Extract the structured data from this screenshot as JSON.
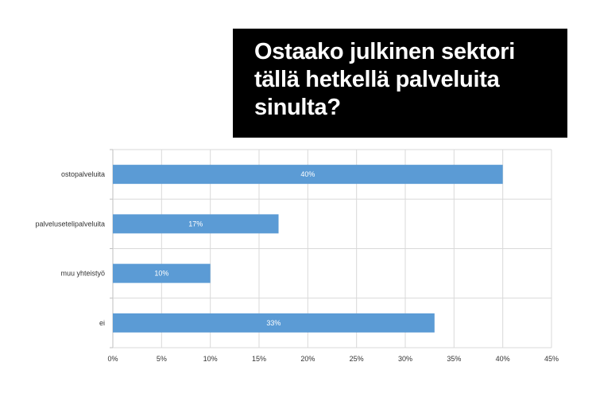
{
  "title": "Ostaako julkinen sektori tällä hetkellä palveluita sinulta?",
  "colors": {
    "bar": "#5b9bd5",
    "grid": "#d9d9d9",
    "title_bg": "#000000",
    "title_fg": "#ffffff"
  },
  "chart_data": {
    "type": "bar",
    "orientation": "horizontal",
    "categories": [
      "ostopalveluita",
      "palvelusetelipalveluita",
      "muu yhteistyö",
      "ei"
    ],
    "values": [
      40,
      17,
      10,
      33
    ],
    "data_labels": [
      "40%",
      "17%",
      "10%",
      "33%"
    ],
    "xlim": [
      0,
      45
    ],
    "x_ticks": [
      0,
      5,
      10,
      15,
      20,
      25,
      30,
      35,
      40,
      45
    ],
    "x_tick_labels": [
      "0%",
      "5%",
      "10%",
      "15%",
      "20%",
      "25%",
      "30%",
      "35%",
      "40%",
      "45%"
    ],
    "grid": true,
    "legend": "none"
  }
}
